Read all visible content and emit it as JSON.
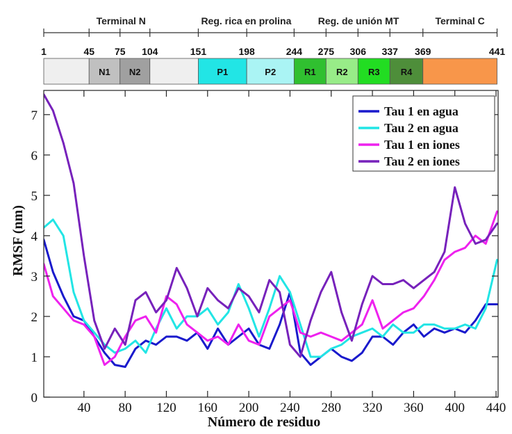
{
  "chart_data": {
    "type": "line",
    "title": "",
    "xlabel": "Número de residuo",
    "ylabel": "RMSF (nm)",
    "xlim": [
      1,
      442
    ],
    "ylim": [
      0,
      7.6
    ],
    "xticks": [
      40,
      80,
      120,
      160,
      200,
      240,
      280,
      320,
      360,
      400,
      440
    ],
    "yticks": [
      0,
      1,
      2,
      3,
      4,
      5,
      6,
      7
    ],
    "legend_position": "top-right",
    "regions": [
      {
        "label": "Terminal N",
        "start": 1,
        "end": 151
      },
      {
        "label": "Reg. rica en prolina",
        "start": 151,
        "end": 244
      },
      {
        "label": "Reg. de unión MT",
        "start": 244,
        "end": 369
      },
      {
        "label": "Terminal C",
        "start": 369,
        "end": 441
      }
    ],
    "boundary_labels": [
      1,
      45,
      75,
      104,
      151,
      198,
      244,
      275,
      306,
      337,
      369,
      441
    ],
    "domains": [
      {
        "label": "",
        "start": 1,
        "end": 45,
        "color": "#efefef"
      },
      {
        "label": "N1",
        "start": 45,
        "end": 75,
        "color": "#c0c0c0"
      },
      {
        "label": "N2",
        "start": 75,
        "end": 104,
        "color": "#a0a0a0"
      },
      {
        "label": "",
        "start": 104,
        "end": 151,
        "color": "#efefef"
      },
      {
        "label": "P1",
        "start": 151,
        "end": 198,
        "color": "#22e5e5"
      },
      {
        "label": "P2",
        "start": 198,
        "end": 244,
        "color": "#aaf4f4"
      },
      {
        "label": "R1",
        "start": 244,
        "end": 275,
        "color": "#30c030"
      },
      {
        "label": "R2",
        "start": 275,
        "end": 306,
        "color": "#98ec88"
      },
      {
        "label": "R3",
        "start": 306,
        "end": 337,
        "color": "#22dd22"
      },
      {
        "label": "R4",
        "start": 337,
        "end": 369,
        "color": "#4e8e3a"
      },
      {
        "label": "",
        "start": 369,
        "end": 441,
        "color": "#f8964a"
      }
    ],
    "x": [
      1,
      10,
      20,
      30,
      40,
      50,
      60,
      70,
      80,
      90,
      100,
      110,
      120,
      130,
      140,
      150,
      160,
      170,
      180,
      190,
      200,
      210,
      220,
      230,
      240,
      250,
      260,
      270,
      280,
      290,
      300,
      310,
      320,
      330,
      340,
      350,
      360,
      370,
      380,
      390,
      400,
      410,
      420,
      430,
      441
    ],
    "series": [
      {
        "name": "Tau 1 en agua",
        "color": "#1a1acc",
        "values": [
          3.9,
          3.1,
          2.5,
          2.0,
          1.9,
          1.5,
          1.1,
          0.8,
          0.75,
          1.2,
          1.4,
          1.3,
          1.5,
          1.5,
          1.4,
          1.6,
          1.2,
          1.7,
          1.3,
          1.5,
          1.7,
          1.3,
          1.2,
          1.8,
          2.6,
          1.1,
          0.8,
          1.0,
          1.2,
          1.0,
          0.9,
          1.1,
          1.5,
          1.5,
          1.3,
          1.6,
          1.8,
          1.5,
          1.7,
          1.6,
          1.7,
          1.6,
          1.9,
          2.3,
          2.3
        ]
      },
      {
        "name": "Tau 2 en agua",
        "color": "#22e5e5",
        "values": [
          4.2,
          4.4,
          4.0,
          2.6,
          1.9,
          1.6,
          1.3,
          1.1,
          1.2,
          1.4,
          1.1,
          1.7,
          2.2,
          1.7,
          2.0,
          2.0,
          2.2,
          1.8,
          2.1,
          2.8,
          2.2,
          1.5,
          2.2,
          3.0,
          2.6,
          1.8,
          1.0,
          1.0,
          1.2,
          1.3,
          1.5,
          1.6,
          1.7,
          1.5,
          1.8,
          1.6,
          1.6,
          1.8,
          1.8,
          1.7,
          1.7,
          1.8,
          1.7,
          2.2,
          3.4
        ]
      },
      {
        "name": "Tau 1 en iones",
        "color": "#ee22ee",
        "values": [
          3.3,
          2.5,
          2.2,
          1.9,
          1.8,
          1.5,
          0.8,
          1.0,
          1.5,
          1.9,
          2.0,
          1.6,
          2.5,
          2.3,
          1.8,
          1.6,
          1.4,
          1.5,
          1.3,
          1.8,
          1.4,
          1.3,
          2.0,
          2.2,
          2.4,
          1.6,
          1.5,
          1.6,
          1.5,
          1.4,
          1.6,
          1.8,
          2.4,
          1.7,
          1.9,
          2.1,
          2.2,
          2.5,
          2.9,
          3.4,
          3.6,
          3.7,
          4.0,
          3.8,
          4.6
        ]
      },
      {
        "name": "Tau 2 en iones",
        "color": "#7722bb",
        "values": [
          7.5,
          7.1,
          6.3,
          5.3,
          3.5,
          1.9,
          1.2,
          1.7,
          1.3,
          2.4,
          2.6,
          2.1,
          2.4,
          3.2,
          2.7,
          2.0,
          2.7,
          2.4,
          2.2,
          2.7,
          2.5,
          2.1,
          2.9,
          2.6,
          1.3,
          1.0,
          1.9,
          2.6,
          3.1,
          2.1,
          1.4,
          2.3,
          3.0,
          2.8,
          2.8,
          2.9,
          2.7,
          2.9,
          3.1,
          3.6,
          5.2,
          4.3,
          3.8,
          3.9,
          4.3
        ]
      }
    ]
  }
}
